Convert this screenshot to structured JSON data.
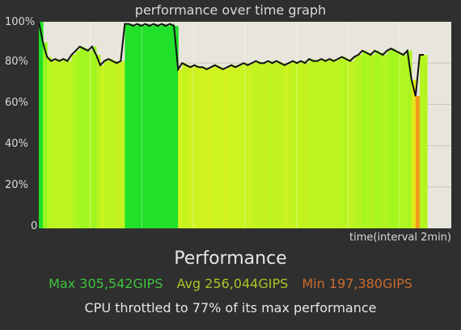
{
  "graph": {
    "title": "performance over time graph",
    "x_label": "time(interval 2min)"
  },
  "performance": {
    "heading": "Performance",
    "max_text": "Max 305,542GIPS",
    "avg_text": "Avg 256,044GIPS",
    "min_text": "Min 197,380GIPS",
    "throttle_text": "CPU throttled to 77% of its max performance"
  },
  "colors": {
    "background": "#2f2f2f",
    "plot_background": "#e8e6dc",
    "line": "#111111",
    "max": "#3ec23e",
    "avg": "#a8c626",
    "min": "#c86a2e"
  },
  "chart_data": {
    "type": "area",
    "title": "performance over time graph",
    "xlabel": "time(interval 2min)",
    "ylabel": "",
    "ylim": [
      0,
      100
    ],
    "y_ticks": [
      "0",
      "20%",
      "40%",
      "60%",
      "80%",
      "100%"
    ],
    "grid": true,
    "x": [
      0,
      1,
      2,
      3,
      4,
      5,
      6,
      7,
      8,
      9,
      10,
      11,
      12,
      13,
      14,
      15,
      16,
      17,
      18,
      19,
      20,
      21,
      22,
      23,
      24,
      25,
      26,
      27,
      28,
      29,
      30,
      31,
      32,
      33,
      34,
      35,
      36,
      37,
      38,
      39,
      40,
      41,
      42,
      43,
      44,
      45,
      46,
      47,
      48,
      49,
      50,
      51,
      52,
      53,
      54,
      55,
      56,
      57,
      58,
      59,
      60,
      61,
      62,
      63,
      64,
      65,
      66,
      67,
      68,
      69,
      70,
      71,
      72,
      73,
      74,
      75,
      76,
      77,
      78,
      79,
      80,
      81,
      82,
      83,
      84,
      85,
      86,
      87,
      88,
      89,
      90,
      91,
      92,
      93,
      94
    ],
    "series": [
      {
        "values": [
          100,
          90,
          83,
          81,
          82,
          81,
          82,
          81,
          84,
          86,
          88,
          87,
          86,
          88,
          84,
          79,
          81,
          82,
          81,
          80,
          81,
          99,
          99,
          98,
          99,
          98,
          99,
          98,
          99,
          98,
          99,
          98,
          99,
          98,
          77,
          80,
          79,
          78,
          79,
          78,
          78,
          77,
          78,
          79,
          78,
          77,
          78,
          79,
          78,
          79,
          80,
          79,
          80,
          81,
          80,
          80,
          81,
          80,
          81,
          80,
          79,
          80,
          81,
          80,
          81,
          80,
          82,
          81,
          81,
          82,
          81,
          82,
          81,
          82,
          83,
          82,
          81,
          83,
          84,
          86,
          85,
          84,
          86,
          85,
          84,
          86,
          87,
          86,
          85,
          84,
          86,
          72,
          64,
          84,
          84
        ]
      }
    ]
  }
}
